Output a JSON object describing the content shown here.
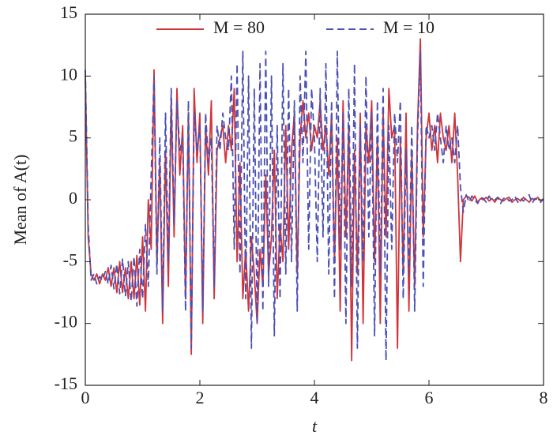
{
  "chart_data": {
    "type": "line",
    "xlabel": "t",
    "ylabel": "Mean of A(t)",
    "x": [
      0,
      0.05,
      0.1,
      0.15,
      0.2,
      0.25,
      0.3,
      0.35,
      0.4,
      0.45,
      0.5,
      0.55,
      0.6,
      0.65,
      0.7,
      0.75,
      0.8,
      0.85,
      0.9,
      0.95,
      1,
      1.05,
      1.1,
      1.15,
      1.2,
      1.25,
      1.3,
      1.35,
      1.4,
      1.45,
      1.5,
      1.55,
      1.6,
      1.65,
      1.7,
      1.75,
      1.8,
      1.85,
      1.9,
      1.95,
      2,
      2.05,
      2.1,
      2.15,
      2.2,
      2.25,
      2.3,
      2.35,
      2.4,
      2.45,
      2.5,
      2.55,
      2.6,
      2.65,
      2.7,
      2.75,
      2.8,
      2.85,
      2.9,
      2.95,
      3,
      3.05,
      3.1,
      3.15,
      3.2,
      3.25,
      3.3,
      3.35,
      3.4,
      3.45,
      3.5,
      3.55,
      3.6,
      3.65,
      3.7,
      3.75,
      3.8,
      3.85,
      3.9,
      3.95,
      4,
      4.05,
      4.1,
      4.15,
      4.2,
      4.25,
      4.3,
      4.35,
      4.4,
      4.45,
      4.5,
      4.55,
      4.6,
      4.65,
      4.7,
      4.75,
      4.8,
      4.85,
      4.9,
      4.95,
      5,
      5.05,
      5.1,
      5.15,
      5.2,
      5.25,
      5.3,
      5.35,
      5.4,
      5.45,
      5.5,
      5.55,
      5.6,
      5.65,
      5.7,
      5.75,
      5.8,
      5.85,
      5.9,
      5.95,
      6,
      6.05,
      6.1,
      6.15,
      6.2,
      6.25,
      6.3,
      6.35,
      6.4,
      6.45,
      6.5,
      6.55,
      6.6,
      6.65,
      6.7,
      6.75,
      6.8,
      6.85,
      6.9,
      6.95,
      7,
      7.05,
      7.1,
      7.15,
      7.2,
      7.25,
      7.3,
      7.35,
      7.4,
      7.45,
      7.5,
      7.55,
      7.6,
      7.65,
      7.7,
      7.75,
      7.8,
      7.85,
      7.9,
      7.95,
      8
    ],
    "series": [
      {
        "name": "M = 80",
        "color": "#d0343a",
        "dashed": false,
        "values": [
          10,
          -3,
          -6,
          -6.5,
          -6,
          -6.8,
          -6,
          -6.5,
          -5.5,
          -7,
          -5.5,
          -7.5,
          -5,
          -7.5,
          -5.5,
          -8,
          -5,
          -8,
          -4.5,
          -8.5,
          -3,
          -9,
          0,
          -4,
          10.5,
          -5,
          3,
          -10,
          4,
          -7,
          8,
          -3,
          9,
          2,
          6,
          -8,
          7,
          -12.5,
          9,
          3,
          7,
          -10,
          6,
          2,
          8,
          -8,
          4,
          5,
          6,
          3,
          6,
          4,
          9,
          -5,
          3,
          -8,
          -4,
          -9,
          -3,
          -6,
          -10,
          -4,
          -7,
          2,
          -6,
          -3,
          4,
          -8,
          -2,
          -5,
          6,
          -4,
          4,
          7,
          -6,
          5,
          8,
          5,
          7,
          4,
          6,
          5,
          8,
          4,
          6,
          2,
          7,
          -5,
          5,
          -9,
          8,
          -3,
          6,
          -13,
          4,
          -6,
          7,
          -10,
          6,
          3,
          8,
          -5,
          5,
          -10,
          7,
          -3,
          9,
          5,
          6,
          -12,
          5,
          -6,
          7,
          -9,
          4,
          -7,
          6,
          13,
          -3,
          5,
          7,
          4,
          6,
          3,
          7,
          5,
          4,
          6,
          3,
          7,
          2,
          -5,
          0,
          0.3,
          0.2,
          -0.1,
          0.3,
          -0.2,
          0.1,
          0,
          0.2,
          -0.1,
          0.1,
          -0.2,
          0.2,
          0,
          -0.1,
          0.1,
          0.2,
          -0.2,
          0,
          0.1,
          -0.1,
          0.2,
          0,
          -0.2,
          0.1,
          0,
          0.2,
          -0.1,
          0
        ]
      },
      {
        "name": "M = 10",
        "color": "#4a50b4",
        "dashed": true,
        "values": [
          10.5,
          -2,
          -6.5,
          -6,
          -6.8,
          -6.2,
          -6.5,
          -5.8,
          -6.8,
          -5.3,
          -7.2,
          -5.2,
          -7.6,
          -4.8,
          -7.8,
          -5,
          -8.2,
          -4.6,
          -8.6,
          -4,
          -8,
          -2,
          -7,
          2,
          10,
          -6,
          5,
          -9,
          7,
          -5,
          9,
          -2,
          8,
          4,
          5,
          -9,
          8,
          -12,
          7,
          4,
          6,
          -9,
          7,
          3,
          5,
          -7,
          6,
          4,
          7,
          5,
          4,
          10,
          -4,
          11,
          -6,
          12,
          -8,
          10,
          -12,
          9,
          -10,
          11,
          -9,
          12,
          -7,
          10,
          -11,
          6,
          -8,
          11,
          -6,
          9,
          -5,
          8,
          -9,
          10,
          3,
          12,
          -4,
          9,
          5,
          -5,
          9,
          -3,
          11,
          -6,
          8,
          -8,
          12,
          -4,
          7,
          -10,
          9,
          -7,
          11,
          -12,
          6,
          -5,
          10,
          -3,
          7,
          -11,
          8,
          -6,
          9,
          -13,
          6,
          -4,
          7,
          3,
          8,
          -8,
          4,
          -6,
          6,
          -9,
          5,
          12,
          -7,
          6,
          5,
          6,
          4,
          7,
          5,
          3,
          6,
          4,
          5,
          3,
          6,
          1,
          -1,
          0.4,
          -0.2,
          0.3,
          0,
          -0.3,
          0.2,
          0.1,
          -0.2,
          0.3,
          -0.1,
          0,
          0.2,
          -0.3,
          0.1,
          0.2,
          -0.1,
          0,
          0.3,
          -0.2,
          0.1,
          -0.1,
          0.2,
          0.4,
          -0.3,
          0.1,
          0,
          -0.2,
          0.1
        ]
      }
    ],
    "xlim": [
      0,
      8
    ],
    "xticks": [
      0,
      2,
      4,
      6,
      8
    ],
    "ylim": [
      -15,
      15
    ],
    "yticks": [
      -15,
      -10,
      -5,
      0,
      5,
      10,
      15
    ],
    "legend": "upper center"
  }
}
